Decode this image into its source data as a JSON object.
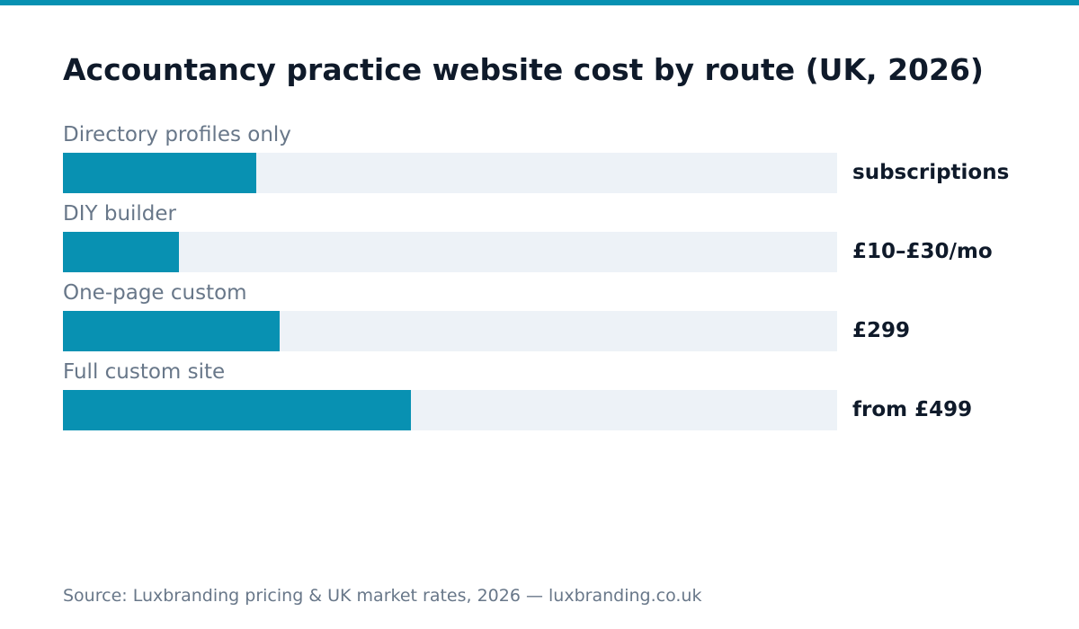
{
  "colors": {
    "accent": "#0891b2",
    "track": "#edf2f7",
    "title": "#0f1a2a",
    "muted": "#687789"
  },
  "chart_data": {
    "type": "bar",
    "orientation": "horizontal",
    "title": "Accountancy practice website cost by route (UK, 2026)",
    "categories": [
      "Directory profiles only",
      "DIY builder",
      "One-page custom",
      "Full custom site"
    ],
    "values": [
      0.25,
      0.15,
      0.28,
      0.45
    ],
    "value_scale": "fraction of full bar",
    "data_labels": [
      "subscriptions",
      "£10–£30/mo",
      "£299",
      "from £499"
    ],
    "grid": false,
    "legend": "none"
  },
  "footer": {
    "source": "Source: Luxbranding pricing & UK market rates, 2026 — luxbranding.co.uk"
  }
}
